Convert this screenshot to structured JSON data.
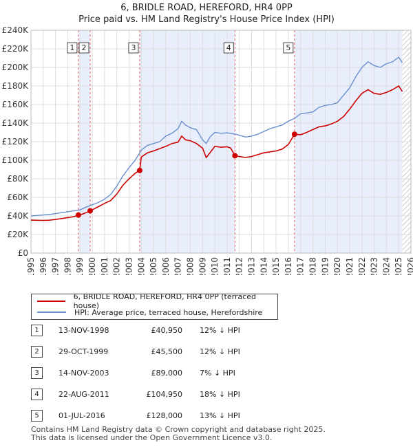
{
  "title": "6, BRIDLE ROAD, HEREFORD, HR4 0PP",
  "subtitle": "Price paid vs. HM Land Registry's House Price Index (HPI)",
  "colors": {
    "price": "#cc0000",
    "hpi": "#6a8fd0",
    "shade": "#e8eefb",
    "vline": "#e06060",
    "hatch": "#999999"
  },
  "legend": {
    "price_label": "6, BRIDLE ROAD, HEREFORD, HR4 0PP (terraced house)",
    "hpi_label": "HPI: Average price, terraced house, Herefordshire"
  },
  "transactions": [
    {
      "num": "1",
      "date": "13-NOV-1998",
      "price": "£40,950",
      "hpi": "12% ↓ HPI"
    },
    {
      "num": "2",
      "date": "29-OCT-1999",
      "price": "£45,500",
      "hpi": "12% ↓ HPI"
    },
    {
      "num": "3",
      "date": "14-NOV-2003",
      "price": "£89,000",
      "hpi": "7% ↓ HPI"
    },
    {
      "num": "4",
      "date": "22-AUG-2011",
      "price": "£104,950",
      "hpi": "18% ↓ HPI"
    },
    {
      "num": "5",
      "date": "01-JUL-2016",
      "price": "£128,000",
      "hpi": "13% ↓ HPI"
    }
  ],
  "footer": {
    "line1": "Contains HM Land Registry data © Crown copyright and database right 2025.",
    "line2": "This data is licensed under the Open Government Licence v3.0."
  },
  "chart_data": {
    "type": "line",
    "xlim": [
      1995,
      2026
    ],
    "ylim": [
      0,
      240000
    ],
    "x_ticks": [
      1995,
      1996,
      1997,
      1998,
      1999,
      2000,
      2001,
      2002,
      2003,
      2004,
      2005,
      2006,
      2007,
      2008,
      2009,
      2010,
      2011,
      2012,
      2013,
      2014,
      2015,
      2016,
      2017,
      2018,
      2019,
      2020,
      2021,
      2022,
      2023,
      2024,
      2025,
      2026
    ],
    "y_ticks": [
      {
        "value": 0,
        "label": "£0"
      },
      {
        "value": 20000,
        "label": "£20K"
      },
      {
        "value": 40000,
        "label": "£40K"
      },
      {
        "value": 60000,
        "label": "£60K"
      },
      {
        "value": 80000,
        "label": "£80K"
      },
      {
        "value": 100000,
        "label": "£100K"
      },
      {
        "value": 120000,
        "label": "£120K"
      },
      {
        "value": 140000,
        "label": "£140K"
      },
      {
        "value": 160000,
        "label": "£160K"
      },
      {
        "value": 180000,
        "label": "£180K"
      },
      {
        "value": 200000,
        "label": "£200K"
      },
      {
        "value": 220000,
        "label": "£220K"
      },
      {
        "value": 240000,
        "label": "£240K"
      }
    ],
    "shaded_ranges": [
      [
        1998.87,
        1999.83
      ],
      [
        2003.87,
        2011.64
      ],
      [
        2016.5,
        2025.3
      ]
    ],
    "hatch_from": 2025.3,
    "sales": [
      {
        "label": "1",
        "x": 1998.87,
        "y": 40950
      },
      {
        "label": "2",
        "x": 1999.83,
        "y": 45500
      },
      {
        "label": "3",
        "x": 2003.87,
        "y": 89000
      },
      {
        "label": "4",
        "x": 2011.64,
        "y": 104950
      },
      {
        "label": "5",
        "x": 2016.5,
        "y": 128000
      }
    ],
    "series": [
      {
        "name": "HPI: Average price, terraced house, Herefordshire",
        "x": [
          1995.0,
          1995.5,
          1996.0,
          1996.5,
          1997.0,
          1997.5,
          1998.0,
          1998.5,
          1999.0,
          1999.5,
          2000.0,
          2000.5,
          2001.0,
          2001.5,
          2002.0,
          2002.5,
          2003.0,
          2003.5,
          2004.0,
          2004.5,
          2005.0,
          2005.5,
          2006.0,
          2006.5,
          2007.0,
          2007.3,
          2007.6,
          2008.0,
          2008.5,
          2009.0,
          2009.3,
          2009.6,
          2010.0,
          2010.5,
          2011.0,
          2011.5,
          2012.0,
          2012.5,
          2013.0,
          2013.5,
          2014.0,
          2014.5,
          2015.0,
          2015.5,
          2016.0,
          2016.5,
          2017.0,
          2017.5,
          2018.0,
          2018.5,
          2019.0,
          2019.5,
          2020.0,
          2020.5,
          2021.0,
          2021.5,
          2022.0,
          2022.5,
          2023.0,
          2023.5,
          2024.0,
          2024.5,
          2025.0,
          2025.3
        ],
        "y": [
          40000,
          40500,
          41000,
          41500,
          42500,
          43500,
          44500,
          45500,
          46500,
          49500,
          52000,
          54500,
          58000,
          63000,
          72000,
          83000,
          92000,
          100000,
          111000,
          116000,
          118000,
          120000,
          126000,
          129000,
          134000,
          142000,
          138000,
          135000,
          133000,
          122000,
          118000,
          125000,
          130000,
          129000,
          129500,
          128500,
          127000,
          125000,
          126000,
          128000,
          131000,
          134000,
          136000,
          138000,
          142000,
          145000,
          150000,
          151000,
          152000,
          157000,
          159000,
          160000,
          162000,
          170000,
          178000,
          190000,
          200000,
          206000,
          202000,
          200000,
          204000,
          206000,
          211000,
          205000
        ]
      },
      {
        "name": "6, BRIDLE ROAD, HEREFORD, HR4 0PP (terraced house)",
        "x": [
          1995.0,
          1995.5,
          1996.0,
          1996.5,
          1997.0,
          1997.5,
          1998.0,
          1998.5,
          1998.87,
          1999.2,
          1999.5,
          1999.83,
          2000.0,
          2000.5,
          2001.0,
          2001.5,
          2002.0,
          2002.5,
          2003.0,
          2003.5,
          2003.87,
          2004.0,
          2004.5,
          2005.0,
          2005.5,
          2006.0,
          2006.5,
          2007.0,
          2007.3,
          2007.6,
          2008.0,
          2008.5,
          2009.0,
          2009.3,
          2009.6,
          2010.0,
          2010.5,
          2011.0,
          2011.3,
          2011.64,
          2012.0,
          2012.5,
          2013.0,
          2013.5,
          2014.0,
          2014.5,
          2015.0,
          2015.5,
          2016.0,
          2016.5,
          2017.0,
          2017.5,
          2018.0,
          2018.5,
          2019.0,
          2019.5,
          2020.0,
          2020.5,
          2021.0,
          2021.5,
          2022.0,
          2022.5,
          2023.0,
          2023.5,
          2024.0,
          2024.5,
          2025.0,
          2025.3
        ],
        "y": [
          35500,
          35300,
          35200,
          35400,
          36200,
          37200,
          38200,
          39200,
          40950,
          42000,
          43500,
          45500,
          46500,
          50000,
          53500,
          56500,
          63500,
          73000,
          80000,
          86000,
          89000,
          103500,
          108000,
          110000,
          112500,
          115000,
          118000,
          119500,
          126000,
          122000,
          121000,
          118000,
          113000,
          103000,
          108000,
          115000,
          114000,
          114500,
          113000,
          104950,
          104000,
          103000,
          104000,
          106000,
          108000,
          109000,
          110000,
          112000,
          117000,
          128000,
          127500,
          130000,
          133000,
          136000,
          137000,
          139000,
          142000,
          147000,
          155000,
          164000,
          172000,
          176000,
          172000,
          171000,
          173000,
          176000,
          180000,
          174000
        ]
      }
    ]
  }
}
